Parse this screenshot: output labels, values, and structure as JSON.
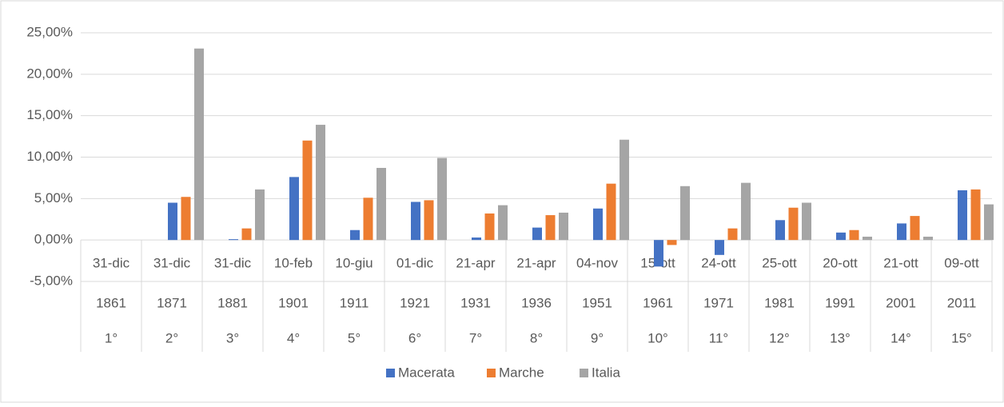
{
  "chart_data": {
    "type": "bar",
    "categories": [
      "31-dic",
      "31-dic",
      "31-dic",
      "10-feb",
      "10-giu",
      "01-dic",
      "21-apr",
      "21-apr",
      "04-nov",
      "15-ott",
      "24-ott",
      "25-ott",
      "20-ott",
      "21-ott",
      "09-ott"
    ],
    "category_years": [
      "1861",
      "1871",
      "1881",
      "1901",
      "1911",
      "1921",
      "1931",
      "1936",
      "1951",
      "1961",
      "1971",
      "1981",
      "1991",
      "2001",
      "2011"
    ],
    "category_ordinals": [
      "1°",
      "2°",
      "3°",
      "4°",
      "5°",
      "6°",
      "7°",
      "8°",
      "9°",
      "10°",
      "11°",
      "12°",
      "13°",
      "14°",
      "15°"
    ],
    "series": [
      {
        "name": "Macerata",
        "color": "#4472c4",
        "values": [
          null,
          4.5,
          0.1,
          7.6,
          1.2,
          4.6,
          0.3,
          1.5,
          3.8,
          -3.2,
          -1.8,
          2.4,
          0.9,
          2.0,
          6.0
        ]
      },
      {
        "name": "Marche",
        "color": "#ed7d31",
        "values": [
          null,
          5.2,
          1.4,
          12.0,
          5.1,
          4.8,
          3.2,
          3.0,
          6.8,
          -0.6,
          1.4,
          3.9,
          1.2,
          2.9,
          6.1
        ]
      },
      {
        "name": "Italia",
        "color": "#a5a5a5",
        "values": [
          null,
          23.1,
          6.1,
          13.9,
          8.7,
          9.9,
          4.2,
          3.3,
          12.1,
          6.5,
          6.9,
          4.5,
          0.4,
          0.4,
          4.3
        ]
      }
    ],
    "ylim": [
      -5,
      25
    ],
    "yticks": [
      {
        "value": -5,
        "label": "-5,00%"
      },
      {
        "value": 0,
        "label": "0,00%"
      },
      {
        "value": 5,
        "label": "5,00%"
      },
      {
        "value": 10,
        "label": "10,00%"
      },
      {
        "value": 15,
        "label": "15,00%"
      },
      {
        "value": 20,
        "label": "20,00%"
      },
      {
        "value": 25,
        "label": "25,00%"
      }
    ],
    "grid": true,
    "legend": "bottom"
  }
}
